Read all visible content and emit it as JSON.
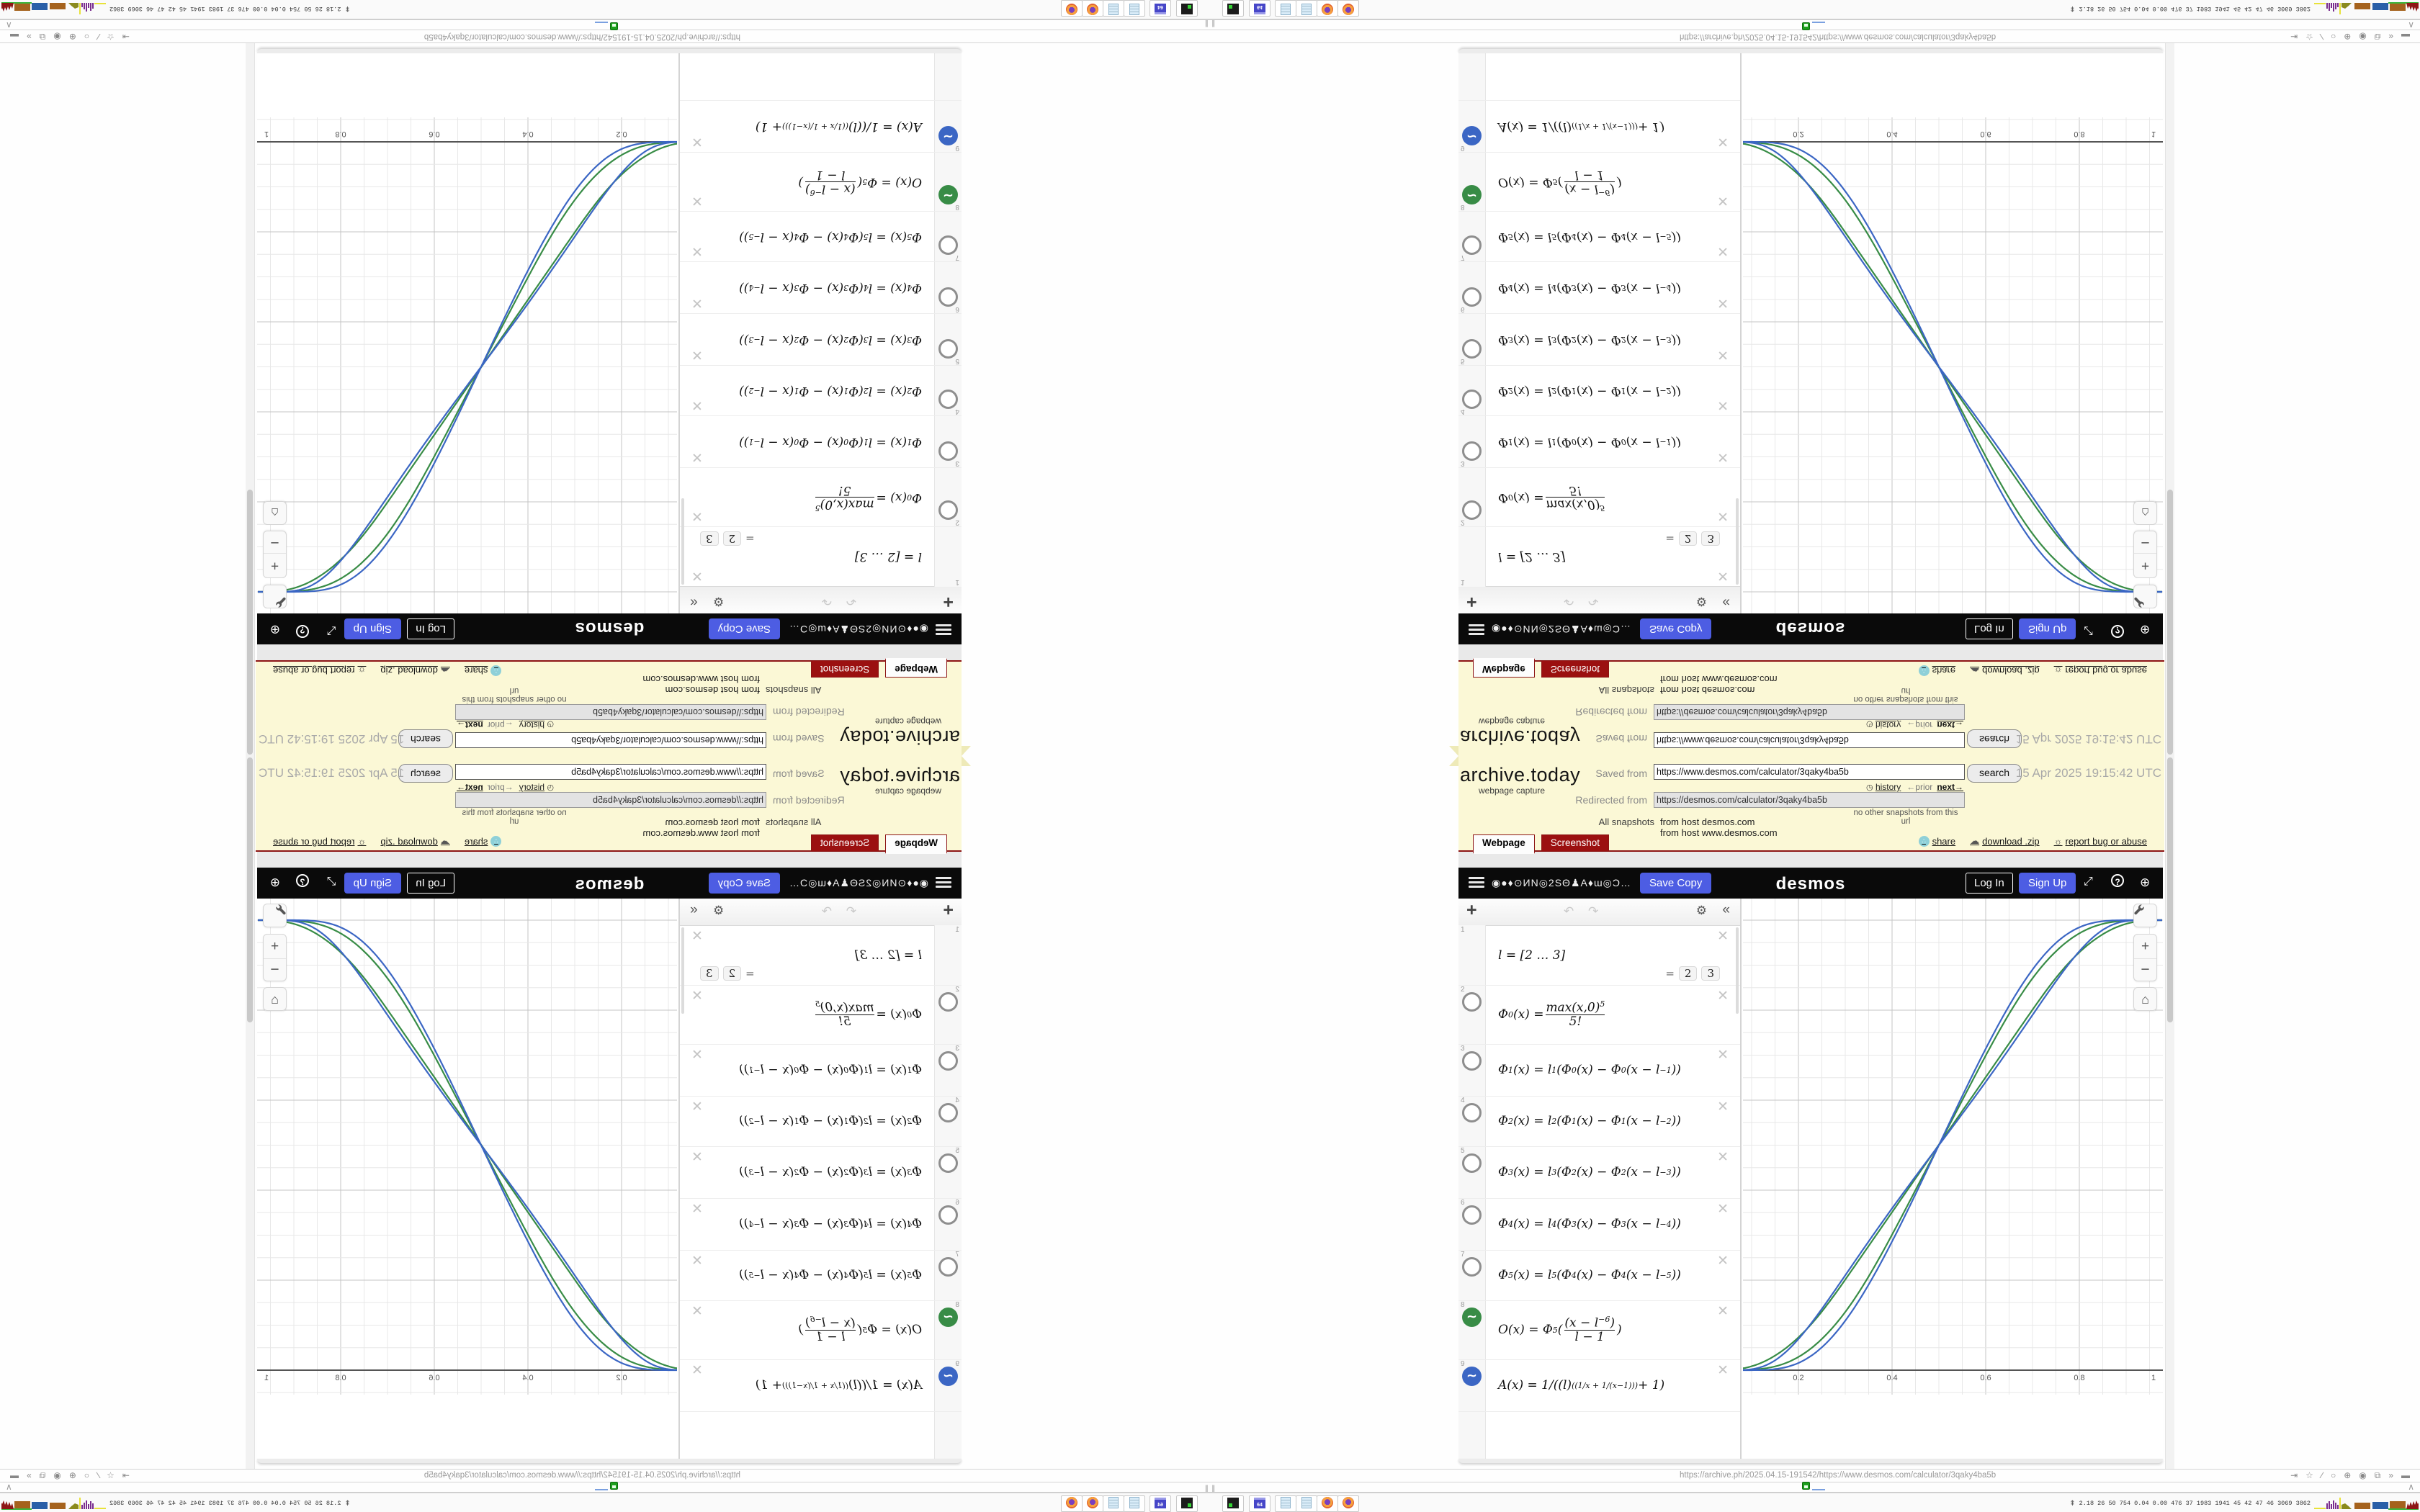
{
  "archive": {
    "logo": "archive.today",
    "tagline": "webpage capture",
    "saved_from_label": "Saved from",
    "saved_url": "https://www.desmos.com/calculator/3qaky4ba5b",
    "search_label": "search",
    "timestamp": "15 Apr 2025 19:15:42 UTC",
    "history_label": "history",
    "prior_label": "←prior",
    "next_label": "next→",
    "redirected_label": "Redirected from",
    "redirected_url": "https://desmos.com/calculator/3qaky4ba5b",
    "no_snapshots": "no other snapshots from this url",
    "all_snapshots_label": "All snapshots",
    "host_link_1": "from host desmos.com",
    "host_link_2": "from host www.desmos.com",
    "tab_webpage": "Webpage",
    "tab_screenshot": "Screenshot",
    "share_label": "share",
    "download_label": "download .zip",
    "report_label": "report bug or abuse"
  },
  "desmos_header": {
    "title": "◉●♦⊙ИN◎2SΘ♟A♦ɯ◎Ɔ…",
    "save_copy": "Save Copy",
    "logo": "desmos",
    "log_in": "Log In",
    "sign_up": "Sign Up"
  },
  "expression_toolbar": {
    "add": "+",
    "undo": "↶",
    "redo": "↷",
    "gear": "⚙",
    "collapse": "«"
  },
  "expressions": [
    {
      "number": "1",
      "icon": "none",
      "math": "l = [2 … 3]",
      "results": [
        "2",
        "3"
      ],
      "result_eq": "="
    },
    {
      "number": "2",
      "icon": "ring",
      "math": "Φ_{0}(x) = FRAC{max(x,0)^{5}}{5!}"
    },
    {
      "number": "3",
      "icon": "ring",
      "math": "Φ_{1}(x) = l^{1}(Φ_{0}(x) − Φ_{0}(x − l^{−1}))"
    },
    {
      "number": "4",
      "icon": "ring",
      "math": "Φ_{2}(x) = l^{2}(Φ_{1}(x) − Φ_{1}(x − l^{−2}))"
    },
    {
      "number": "5",
      "icon": "ring",
      "math": "Φ_{3}(x) = l^{3}(Φ_{2}(x) − Φ_{2}(x − l^{−3}))"
    },
    {
      "number": "6",
      "icon": "ring",
      "math": "Φ_{4}(x) = l^{4}(Φ_{3}(x) − Φ_{3}(x − l^{−4}))"
    },
    {
      "number": "7",
      "icon": "ring",
      "math": "Φ_{5}(x) = l^{5}(Φ_{4}(x) − Φ_{4}(x − l^{−5}))"
    },
    {
      "number": "8",
      "icon": "green",
      "math": "O(x) = Φ_{5}(FRAC{(x − l^{−6})}{l − 1})"
    },
    {
      "number": "9",
      "icon": "blue",
      "math": "A(x) = 1/((l)^{((1/x + 1/(x−1)))} + 1)"
    }
  ],
  "chart_data": {
    "type": "line",
    "title": "",
    "xlabel": "",
    "ylabel": "",
    "x_ticks": [
      0.2,
      0.4,
      0.6,
      0.8,
      1
    ],
    "x_tick_labels": [
      "0.2",
      "0.4",
      "0.6",
      "0.8",
      "1"
    ],
    "xlim": [
      0.08,
      0.98
    ],
    "ylim_visible": [
      -0.05,
      1.05
    ],
    "grid": "on",
    "minor_step": 0.05,
    "major_step": 0.2,
    "series": [
      {
        "name": "O(x), l=2",
        "fn": "O",
        "l": 2,
        "color": "#388c46"
      },
      {
        "name": "O(x), l=3",
        "fn": "O",
        "l": 3,
        "color": "#388c46"
      },
      {
        "name": "A(x), l=2",
        "fn": "A",
        "l": 2,
        "color": "#3b66c4"
      },
      {
        "name": "A(x), l=3",
        "fn": "A",
        "l": 3,
        "color": "#3b66c4"
      }
    ],
    "functions": {
      "Phi0": "max(x,0)^5/5!",
      "Phi_k": "l^k(Phi_{k-1}(x) - Phi_{k-1}(x - l^{-k}))",
      "O": "Phi_5((x - l^-6)/(l - 1))",
      "A": "1/(l^(1/x + 1/(x-1)) + 1)"
    }
  },
  "graph_buttons": {
    "plus": "+",
    "minus": "−",
    "home": "⌂"
  },
  "statusbar": {
    "url": "https://archive.ph/2025.04.15-191542/https://www.desmos.com/calculator/3qaky4ba5b"
  },
  "browser_icons": [
    "⇥",
    "☆",
    "∕",
    "○",
    "⊕",
    "◉",
    "⧉",
    "»",
    "▬"
  ],
  "tray": {
    "chevron": "∧"
  },
  "taskbar": {
    "buttons": [
      "terminal",
      "floppy-64",
      "notepad",
      "notepad",
      "firefox",
      "firefox"
    ],
    "floppy_label": "64",
    "monitor_arrow": "⇞",
    "monitor_values": "2.18 26 50 754 0.04 0.00 476 37 1983 1941 45 42 47 46 3069 3862"
  },
  "colors": {
    "ribbon_bg": "#fbf8d6",
    "ribbon_border": "#8c1414",
    "tab_red": "#9b1010",
    "desmos_black": "#0a0a0a",
    "accent_blue": "#4d5de3",
    "curve_green": "#388c46",
    "curve_blue": "#3b66c4",
    "grid_minor": "#e8e8e8",
    "grid_major": "#c4c4c4",
    "axis": "#555555"
  }
}
